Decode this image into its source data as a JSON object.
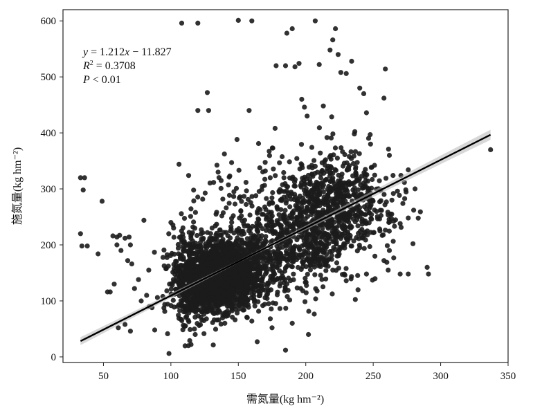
{
  "chart_data": {
    "type": "scatter",
    "title": "",
    "xlabel": "需氮量(kg hm⁻²)",
    "ylabel": "施氮量(kg hm⁻²)",
    "xlim": [
      20,
      350
    ],
    "ylim": [
      -10,
      620
    ],
    "xticks": [
      50,
      100,
      150,
      200,
      250,
      300,
      350
    ],
    "yticks": [
      0,
      100,
      200,
      300,
      400,
      500,
      600
    ],
    "grid": false,
    "annotation": {
      "line1_y": "y",
      "line1_rest": " = 1.212",
      "line1_x": "x",
      "line1_tail": " − 11.827",
      "line2_r": "R",
      "line2_sup": "2",
      "line2_rest": " = 0.3708",
      "line3_p": "P",
      "line3_rest": " < 0.01"
    },
    "regression": {
      "slope": 1.212,
      "intercept": -11.827,
      "x_range": [
        33,
        337
      ]
    },
    "series": [
      {
        "points": [
          [
            33,
            320
          ],
          [
            36,
            320
          ],
          [
            35,
            298
          ],
          [
            33,
            220
          ],
          [
            34,
            198
          ],
          [
            38,
            198
          ],
          [
            49,
            278
          ],
          [
            46,
            184
          ],
          [
            53,
            116
          ],
          [
            55,
            116
          ],
          [
            57,
            216
          ],
          [
            60,
            214
          ],
          [
            62,
            217
          ],
          [
            60,
            200
          ],
          [
            63,
            190
          ],
          [
            66,
            212
          ],
          [
            69,
            214
          ],
          [
            70,
            200
          ],
          [
            68,
            172
          ],
          [
            71,
            166
          ],
          [
            58,
            130
          ],
          [
            61,
            52
          ],
          [
            66,
            58
          ],
          [
            70,
            46
          ],
          [
            73,
            122
          ],
          [
            76,
            138
          ],
          [
            78,
            100
          ],
          [
            80,
            244
          ],
          [
            82,
            110
          ],
          [
            84,
            90
          ],
          [
            86,
            88
          ],
          [
            88,
            48
          ],
          [
            90,
            106
          ],
          [
            94,
            108
          ],
          [
            97,
            118
          ],
          [
            99,
            130
          ],
          [
            100,
            240
          ],
          [
            102,
            230
          ],
          [
            105,
            90
          ],
          [
            106,
            344
          ],
          [
            108,
            596
          ],
          [
            120,
            596
          ],
          [
            127,
            472
          ],
          [
            128,
            440
          ],
          [
            120,
            440
          ],
          [
            135,
            330
          ],
          [
            145,
            347
          ],
          [
            150,
            601
          ],
          [
            160,
            600
          ],
          [
            158,
            440
          ],
          [
            165,
            381
          ],
          [
            170,
            332
          ],
          [
            178,
            520
          ],
          [
            185,
            520
          ],
          [
            186,
            578
          ],
          [
            190,
            586
          ],
          [
            192,
            518
          ],
          [
            195,
            524
          ],
          [
            197,
            460
          ],
          [
            199,
            446
          ],
          [
            201,
            430
          ],
          [
            207,
            600
          ],
          [
            210,
            522
          ],
          [
            213,
            448
          ],
          [
            218,
            548
          ],
          [
            220,
            566
          ],
          [
            222,
            586
          ],
          [
            224,
            540
          ],
          [
            226,
            508
          ],
          [
            230,
            506
          ],
          [
            234,
            528
          ],
          [
            236,
            398
          ],
          [
            240,
            480
          ],
          [
            243,
            470
          ],
          [
            245,
            436
          ],
          [
            248,
            380
          ],
          [
            251,
            342
          ],
          [
            259,
            514
          ],
          [
            258,
            462
          ],
          [
            262,
            360
          ],
          [
            268,
            296
          ],
          [
            272,
            274
          ],
          [
            276,
            334
          ],
          [
            280,
            262
          ],
          [
            285,
            259
          ],
          [
            290,
            160
          ],
          [
            291,
            148
          ],
          [
            270,
            148
          ],
          [
            276,
            148
          ],
          [
            337,
            370
          ],
          [
            113,
            20
          ],
          [
            185,
            12
          ],
          [
            202,
            40
          ],
          [
            164,
            27
          ],
          [
            118,
            40
          ],
          [
            140,
            60
          ],
          [
            160,
            64
          ],
          [
            175,
            52
          ],
          [
            190,
            60
          ],
          [
            230,
            136
          ],
          [
            245,
            148
          ],
          [
            258,
            172
          ],
          [
            262,
            190
          ],
          [
            255,
            225
          ],
          [
            270,
            238
          ],
          [
            276,
            248
          ],
          [
            281,
            300
          ]
        ]
      }
    ]
  }
}
